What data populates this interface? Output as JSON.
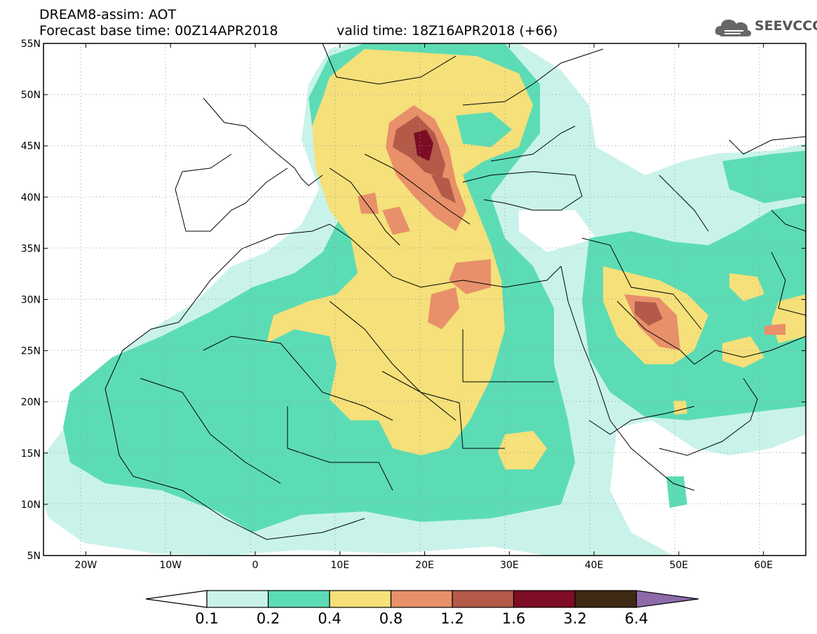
{
  "header": {
    "title": "DREAM8-assim: AOT",
    "base_time": "Forecast base time: 00Z14APR2018",
    "valid_time": "valid time: 18Z16APR2018 (+66)"
  },
  "logo": {
    "text": "SEEVCCC",
    "icon": "cloud-icon"
  },
  "map": {
    "lon_ticks": [
      "20W",
      "10W",
      "0",
      "10E",
      "20E",
      "30E",
      "40E",
      "50E",
      "60E"
    ],
    "lat_ticks": [
      "55N",
      "50N",
      "45N",
      "40N",
      "35N",
      "30N",
      "25N",
      "20N",
      "15N",
      "10N",
      "5N"
    ],
    "lon_range": [
      -25,
      65
    ],
    "lat_range": [
      5,
      55
    ]
  },
  "colorbar": {
    "labels": [
      "0.1",
      "0.2",
      "0.4",
      "0.8",
      "1.2",
      "1.6",
      "3.2",
      "6.4"
    ],
    "colors": [
      "#c9f3ea",
      "#5cdcb5",
      "#f5e07a",
      "#e8906a",
      "#b35a48",
      "#7d0c24",
      "#3e2a14"
    ],
    "over_color": "#8e6aa8",
    "under_color": "#ffffff"
  }
}
